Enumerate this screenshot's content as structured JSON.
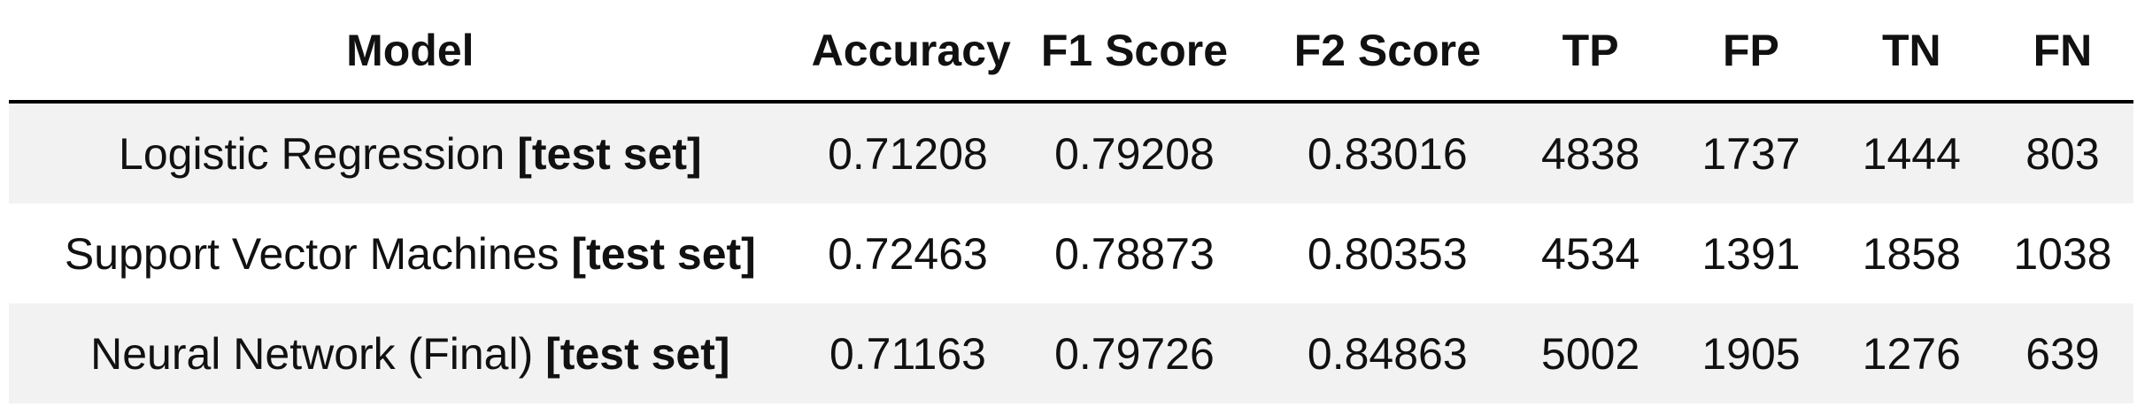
{
  "table": {
    "headers": {
      "model": "Model",
      "accuracy": "Accuracy",
      "f1": "F1 Score",
      "f2": "F2 Score",
      "tp": "TP",
      "fp": "FP",
      "tn": "TN",
      "fn": "FN"
    },
    "rows": [
      {
        "model": "Logistic Regression",
        "set": "[test set]",
        "accuracy": "0.71208",
        "f1": "0.79208",
        "f2": "0.83016",
        "tp": "4838",
        "fp": "1737",
        "tn": "1444",
        "fn": "803"
      },
      {
        "model": "Support Vector Machines",
        "set": "[test set]",
        "accuracy": "0.72463",
        "f1": "0.78873",
        "f2": "0.80353",
        "tp": "4534",
        "fp": "1391",
        "tn": "1858",
        "fn": "1038"
      },
      {
        "model": "Neural Network (Final)",
        "set": "[test set]",
        "accuracy": "0.71163",
        "f1": "0.79726",
        "f2": "0.84863",
        "tp": "5002",
        "fp": "1905",
        "tn": "1276",
        "fn": "639"
      }
    ]
  },
  "colors": {
    "header_rule": "#000000",
    "shaded_row": "#f2f2f2",
    "text": "#111111",
    "background": "#ffffff"
  }
}
